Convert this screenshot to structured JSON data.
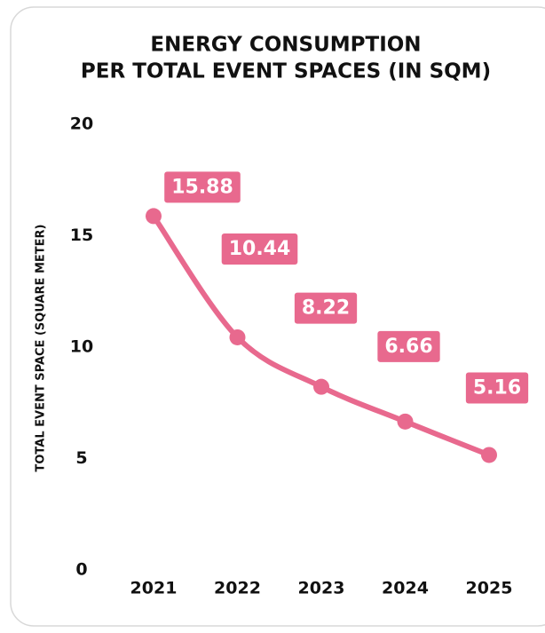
{
  "chart_data": {
    "type": "line",
    "title": [
      "ENERGY CONSUMPTION",
      "PER TOTAL EVENT SPACES (IN SQM)"
    ],
    "y_label": "TOTAL EVENT SPACE (SQUARE METER)",
    "categories": [
      "2021",
      "2022",
      "2023",
      "2024",
      "2025"
    ],
    "values": [
      15.88,
      10.44,
      8.22,
      6.66,
      5.16
    ],
    "color": "#e8698e",
    "ylim": [
      0,
      20
    ],
    "yticks": [
      0,
      5,
      10,
      15,
      20
    ],
    "grid": false
  }
}
